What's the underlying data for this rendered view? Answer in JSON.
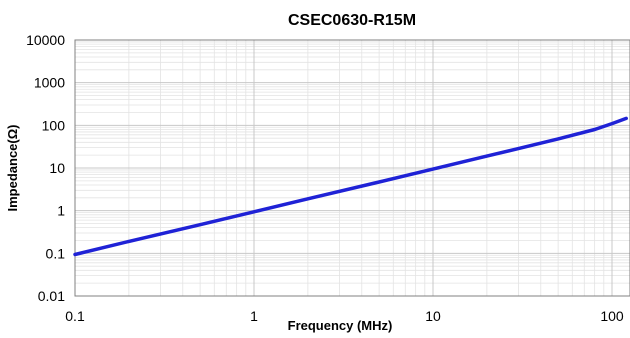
{
  "chart_data": {
    "type": "line",
    "title": "CSEC0630-R15M",
    "xlabel": "Frequency  (MHz)",
    "ylabel": "Impedance(Ω)",
    "xscale": "log",
    "yscale": "log",
    "xlim": [
      0.1,
      120
    ],
    "ylim": [
      0.01,
      10000
    ],
    "xticks": [
      "0.1",
      "1",
      "10",
      "100"
    ],
    "yticks": [
      "10000",
      "1000",
      "100",
      "10",
      "1",
      "0.1",
      "0.01"
    ],
    "grid": true,
    "legend": "none",
    "series": [
      {
        "color": "#1f22d6",
        "x": [
          0.1,
          0.2,
          0.5,
          1,
          2,
          5,
          10,
          20,
          30,
          50,
          80,
          100,
          120
        ],
        "y": [
          0.094,
          0.19,
          0.47,
          0.94,
          1.9,
          4.7,
          9.4,
          19,
          28.5,
          48,
          80,
          110,
          145
        ]
      }
    ]
  }
}
